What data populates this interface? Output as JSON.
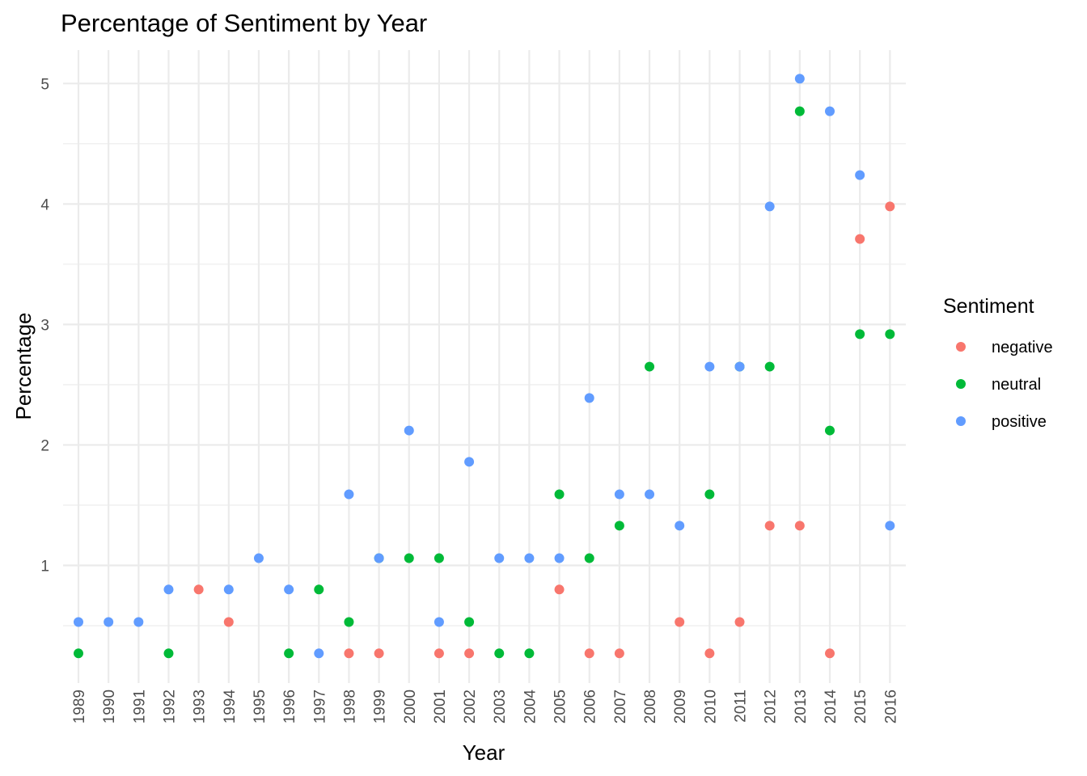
{
  "chart_data": {
    "type": "scatter",
    "title": "Percentage of Sentiment by Year",
    "xlabel": "Year",
    "ylabel": "Percentage",
    "categories": [
      "1989",
      "1990",
      "1991",
      "1992",
      "1993",
      "1994",
      "1995",
      "1996",
      "1997",
      "1998",
      "1999",
      "2000",
      "2001",
      "2002",
      "2003",
      "2004",
      "2005",
      "2006",
      "2007",
      "2008",
      "2009",
      "2010",
      "2011",
      "2012",
      "2013",
      "2014",
      "2015",
      "2016"
    ],
    "y_ticks": [
      1,
      2,
      3,
      4,
      5
    ],
    "ylim": [
      0.17,
      5.28
    ],
    "grid": true,
    "legend": {
      "title": "Sentiment",
      "position": "right"
    },
    "series": [
      {
        "name": "negative",
        "color": "#F8766D",
        "points": [
          [
            "1993",
            0.8
          ],
          [
            "1994",
            0.53
          ],
          [
            "1998",
            0.27
          ],
          [
            "1999",
            0.27
          ],
          [
            "2001",
            0.27
          ],
          [
            "2002",
            0.27
          ],
          [
            "2005",
            0.8
          ],
          [
            "2006",
            0.27
          ],
          [
            "2007",
            0.27
          ],
          [
            "2009",
            0.53
          ],
          [
            "2010",
            0.27
          ],
          [
            "2011",
            0.53
          ],
          [
            "2012",
            1.33
          ],
          [
            "2013",
            1.33
          ],
          [
            "2014",
            0.27
          ],
          [
            "2015",
            3.71
          ],
          [
            "2016",
            3.98
          ]
        ]
      },
      {
        "name": "neutral",
        "color": "#00BA38",
        "points": [
          [
            "1989",
            0.27
          ],
          [
            "1992",
            0.27
          ],
          [
            "1996",
            0.27
          ],
          [
            "1997",
            0.8
          ],
          [
            "1998",
            0.53
          ],
          [
            "1999",
            1.06
          ],
          [
            "2000",
            1.06
          ],
          [
            "2001",
            1.06
          ],
          [
            "2002",
            0.53
          ],
          [
            "2003",
            0.27
          ],
          [
            "2004",
            0.27
          ],
          [
            "2005",
            1.59
          ],
          [
            "2006",
            1.06
          ],
          [
            "2007",
            1.33
          ],
          [
            "2008",
            2.65
          ],
          [
            "2010",
            1.59
          ],
          [
            "2011",
            2.65
          ],
          [
            "2012",
            2.65
          ],
          [
            "2013",
            4.77
          ],
          [
            "2014",
            2.12
          ],
          [
            "2015",
            2.92
          ],
          [
            "2016",
            2.92
          ]
        ]
      },
      {
        "name": "positive",
        "color": "#619CFF",
        "points": [
          [
            "1989",
            0.53
          ],
          [
            "1990",
            0.53
          ],
          [
            "1991",
            0.53
          ],
          [
            "1992",
            0.8
          ],
          [
            "1994",
            0.8
          ],
          [
            "1995",
            1.06
          ],
          [
            "1996",
            0.8
          ],
          [
            "1997",
            0.27
          ],
          [
            "1998",
            1.59
          ],
          [
            "1999",
            1.06
          ],
          [
            "2000",
            2.12
          ],
          [
            "2001",
            0.53
          ],
          [
            "2002",
            1.86
          ],
          [
            "2003",
            1.06
          ],
          [
            "2004",
            1.06
          ],
          [
            "2005",
            1.06
          ],
          [
            "2006",
            2.39
          ],
          [
            "2007",
            1.59
          ],
          [
            "2008",
            1.59
          ],
          [
            "2009",
            1.33
          ],
          [
            "2010",
            2.65
          ],
          [
            "2011",
            2.65
          ],
          [
            "2012",
            3.98
          ],
          [
            "2013",
            5.04
          ],
          [
            "2014",
            4.77
          ],
          [
            "2015",
            4.24
          ],
          [
            "2016",
            1.33
          ]
        ]
      }
    ]
  }
}
